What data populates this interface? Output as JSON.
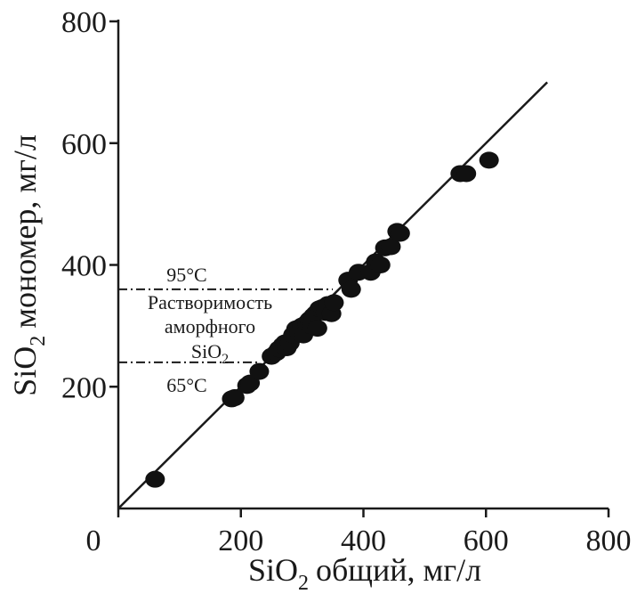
{
  "chart_data": {
    "type": "scatter",
    "title": "",
    "xlabel": "общий, мг/л",
    "xlabel_prefix": "SiO",
    "xlabel_sub": "2",
    "ylabel": "мономер, мг/л",
    "ylabel_prefix": "SiO",
    "ylabel_sub": "2",
    "xlim": [
      0,
      800
    ],
    "ylim": [
      0,
      800
    ],
    "xticks": [
      0,
      200,
      400,
      600,
      800
    ],
    "yticks": [
      200,
      400,
      600,
      800
    ],
    "xtick_labels": [
      "0",
      "200",
      "400",
      "600",
      "800"
    ],
    "ytick_labels": [
      "200",
      "400",
      "600",
      "800"
    ],
    "grid": false,
    "legend": "none",
    "reference_line": {
      "x": [
        0,
        700
      ],
      "y": [
        0,
        700
      ]
    },
    "hlines": [
      {
        "y": 360,
        "x": [
          0,
          350
        ],
        "label": "95°C"
      },
      {
        "y": 240,
        "x": [
          0,
          230
        ],
        "label": "65°C"
      }
    ],
    "annotation": {
      "line1": "Растворимость",
      "line2": "аморфного",
      "line3_prefix": "SiO",
      "line3_sub": "2"
    },
    "series": [
      {
        "points": [
          [
            60,
            48
          ],
          [
            185,
            180
          ],
          [
            190,
            182
          ],
          [
            210,
            202
          ],
          [
            215,
            206
          ],
          [
            230,
            225
          ],
          [
            250,
            250
          ],
          [
            258,
            256
          ],
          [
            262,
            262
          ],
          [
            268,
            268
          ],
          [
            272,
            272
          ],
          [
            275,
            264
          ],
          [
            280,
            272
          ],
          [
            285,
            285
          ],
          [
            290,
            295
          ],
          [
            295,
            290
          ],
          [
            300,
            300
          ],
          [
            302,
            285
          ],
          [
            308,
            305
          ],
          [
            312,
            310
          ],
          [
            315,
            300
          ],
          [
            318,
            316
          ],
          [
            322,
            320
          ],
          [
            325,
            296
          ],
          [
            328,
            328
          ],
          [
            333,
            330
          ],
          [
            338,
            322
          ],
          [
            342,
            335
          ],
          [
            348,
            320
          ],
          [
            352,
            338
          ],
          [
            375,
            375
          ],
          [
            380,
            360
          ],
          [
            392,
            388
          ],
          [
            412,
            388
          ],
          [
            420,
            405
          ],
          [
            428,
            400
          ],
          [
            435,
            428
          ],
          [
            445,
            430
          ],
          [
            455,
            455
          ],
          [
            460,
            452
          ],
          [
            558,
            550
          ],
          [
            568,
            550
          ],
          [
            605,
            572
          ]
        ]
      }
    ]
  }
}
